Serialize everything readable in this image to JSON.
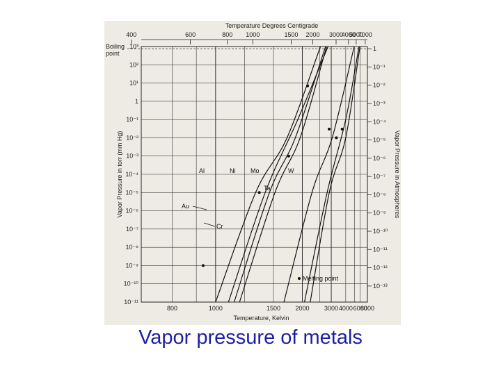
{
  "caption": "Vapor pressure of metals",
  "chart_data": {
    "type": "line",
    "title": "",
    "top_axis_label": "Temperature Degrees Centigrade",
    "xlabel": "Temperature, Kelvin",
    "ylabel": "Vapor Pressure in torr (mm Hg)",
    "right_axis_label": "Vapor Pressure in Atmospheres",
    "boiling_point_label": "Boiling point",
    "x_scale": "reciprocal",
    "xlim": [
      700,
      8000
    ],
    "y_scale": "log",
    "ylim": [
      1e-11,
      1000
    ],
    "grid": true,
    "x_ticks": [
      "800",
      "1000",
      "1500",
      "2000",
      "3000",
      "4000",
      "6000",
      "8000"
    ],
    "top_ticks": [
      "400",
      "600",
      "800",
      "1000",
      "1500",
      "2000",
      "3000",
      "4000",
      "5000",
      "7000"
    ],
    "y_ticks": [
      "10⁻¹¹",
      "10⁻¹⁰",
      "10⁻⁹",
      "10⁻⁸",
      "10⁻⁷",
      "10⁻⁶",
      "10⁻⁵",
      "10⁻⁴",
      "10⁻³",
      "10⁻²",
      "10⁻¹",
      "1",
      "10¹",
      "10²",
      "10³"
    ],
    "right_ticks": [
      "10⁻¹³",
      "10⁻¹²",
      "10⁻¹¹",
      "10⁻¹⁰",
      "10⁻⁹",
      "10⁻⁸",
      "10⁻⁷",
      "10⁻⁶",
      "10⁻⁵",
      "10⁻⁴",
      "10⁻³",
      "10⁻²",
      "10⁻¹",
      "1"
    ],
    "series": [
      {
        "name": "Al",
        "x": [
          1000,
          1300,
          1700,
          2500
        ],
        "y": [
          1e-11,
          1e-05,
          0.01,
          760
        ],
        "melting_point": {
          "x": 933,
          "y": 1e-09
        }
      },
      {
        "name": "Au",
        "x": [
          1080,
          1400,
          1900,
          2800
        ],
        "y": [
          1e-11,
          1e-05,
          0.1,
          760
        ],
        "melting_point": {
          "x": 1337,
          "y": 1e-05
        }
      },
      {
        "name": "Cr",
        "x": [
          1120,
          1450,
          1850,
          2700
        ],
        "y": [
          1e-11,
          1e-05,
          0.01,
          760
        ],
        "melting_point": {
          "x": 2130,
          "y": 7
        }
      },
      {
        "name": "Ni",
        "x": [
          1160,
          1520,
          1950,
          2750
        ],
        "y": [
          1e-11,
          1e-05,
          0.01,
          760
        ],
        "melting_point": {
          "x": 1728,
          "y": 0.001
        }
      },
      {
        "name": "Mo",
        "x": [
          1650,
          2250,
          3050,
          4900
        ],
        "y": [
          1e-11,
          1e-05,
          0.01,
          760
        ],
        "melting_point": {
          "x": 2896,
          "y": 0.03
        }
      },
      {
        "name": "Ta",
        "x": [
          2050,
          2800,
          4000,
          5700
        ],
        "y": [
          1e-11,
          1e-05,
          0.1,
          760
        ],
        "melting_point": {
          "x": 3290,
          "y": 0.01
        }
      },
      {
        "name": "W",
        "x": [
          2200,
          2900,
          4000,
          5900
        ],
        "y": [
          1e-11,
          1e-05,
          0.01,
          760
        ],
        "melting_point": {
          "x": 3695,
          "y": 0.03
        }
      }
    ],
    "legend": {
      "text": "Melting point",
      "position": "bottom-right"
    },
    "curve_labels": [
      "Al",
      "Ni",
      "Mo",
      "W",
      "Ta",
      "Au",
      "Cr"
    ]
  }
}
